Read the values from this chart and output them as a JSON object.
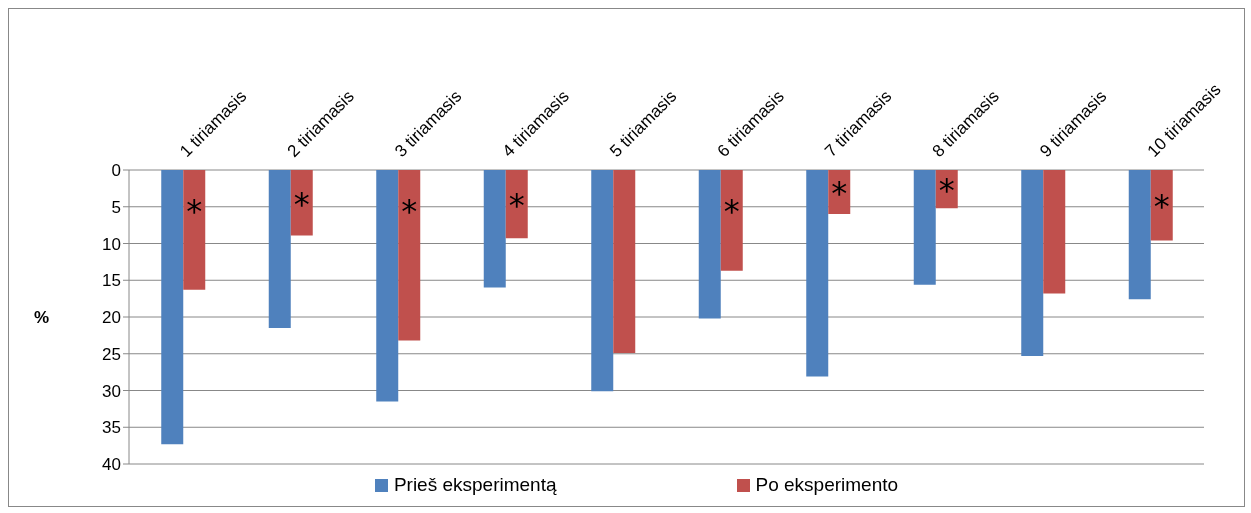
{
  "chart_data": {
    "type": "bar",
    "ylabel": "%",
    "categories": [
      "1 tiriamasis",
      "2 tiriamasis",
      "3 tiriamasis",
      "4 tiriamasis",
      "5 tiriamasis",
      "6 tiriamasis",
      "7 tiriamasis",
      "8 tiriamasis",
      "9 tiriamasis",
      "10 tiriamasis"
    ],
    "series": [
      {
        "name": "Prieš eksperimentą",
        "color": "#4f81bd",
        "values": [
          37.3,
          21.5,
          31.5,
          16.0,
          30.1,
          20.2,
          28.1,
          15.6,
          25.3,
          17.6
        ]
      },
      {
        "name": "Po eksperimento",
        "color": "#c0504d",
        "values": [
          16.3,
          8.9,
          23.2,
          9.3,
          24.9,
          13.7,
          6.0,
          5.2,
          16.8,
          9.6
        ],
        "value_labels": [
          "*",
          "*",
          "*",
          "*",
          null,
          "*",
          "*",
          "*",
          null,
          "*"
        ]
      }
    ],
    "ylim": [
      40,
      0
    ],
    "yticks": [
      0,
      5,
      10,
      15,
      20,
      25,
      30,
      35,
      40
    ],
    "grid": "y",
    "legend": "bottom"
  }
}
